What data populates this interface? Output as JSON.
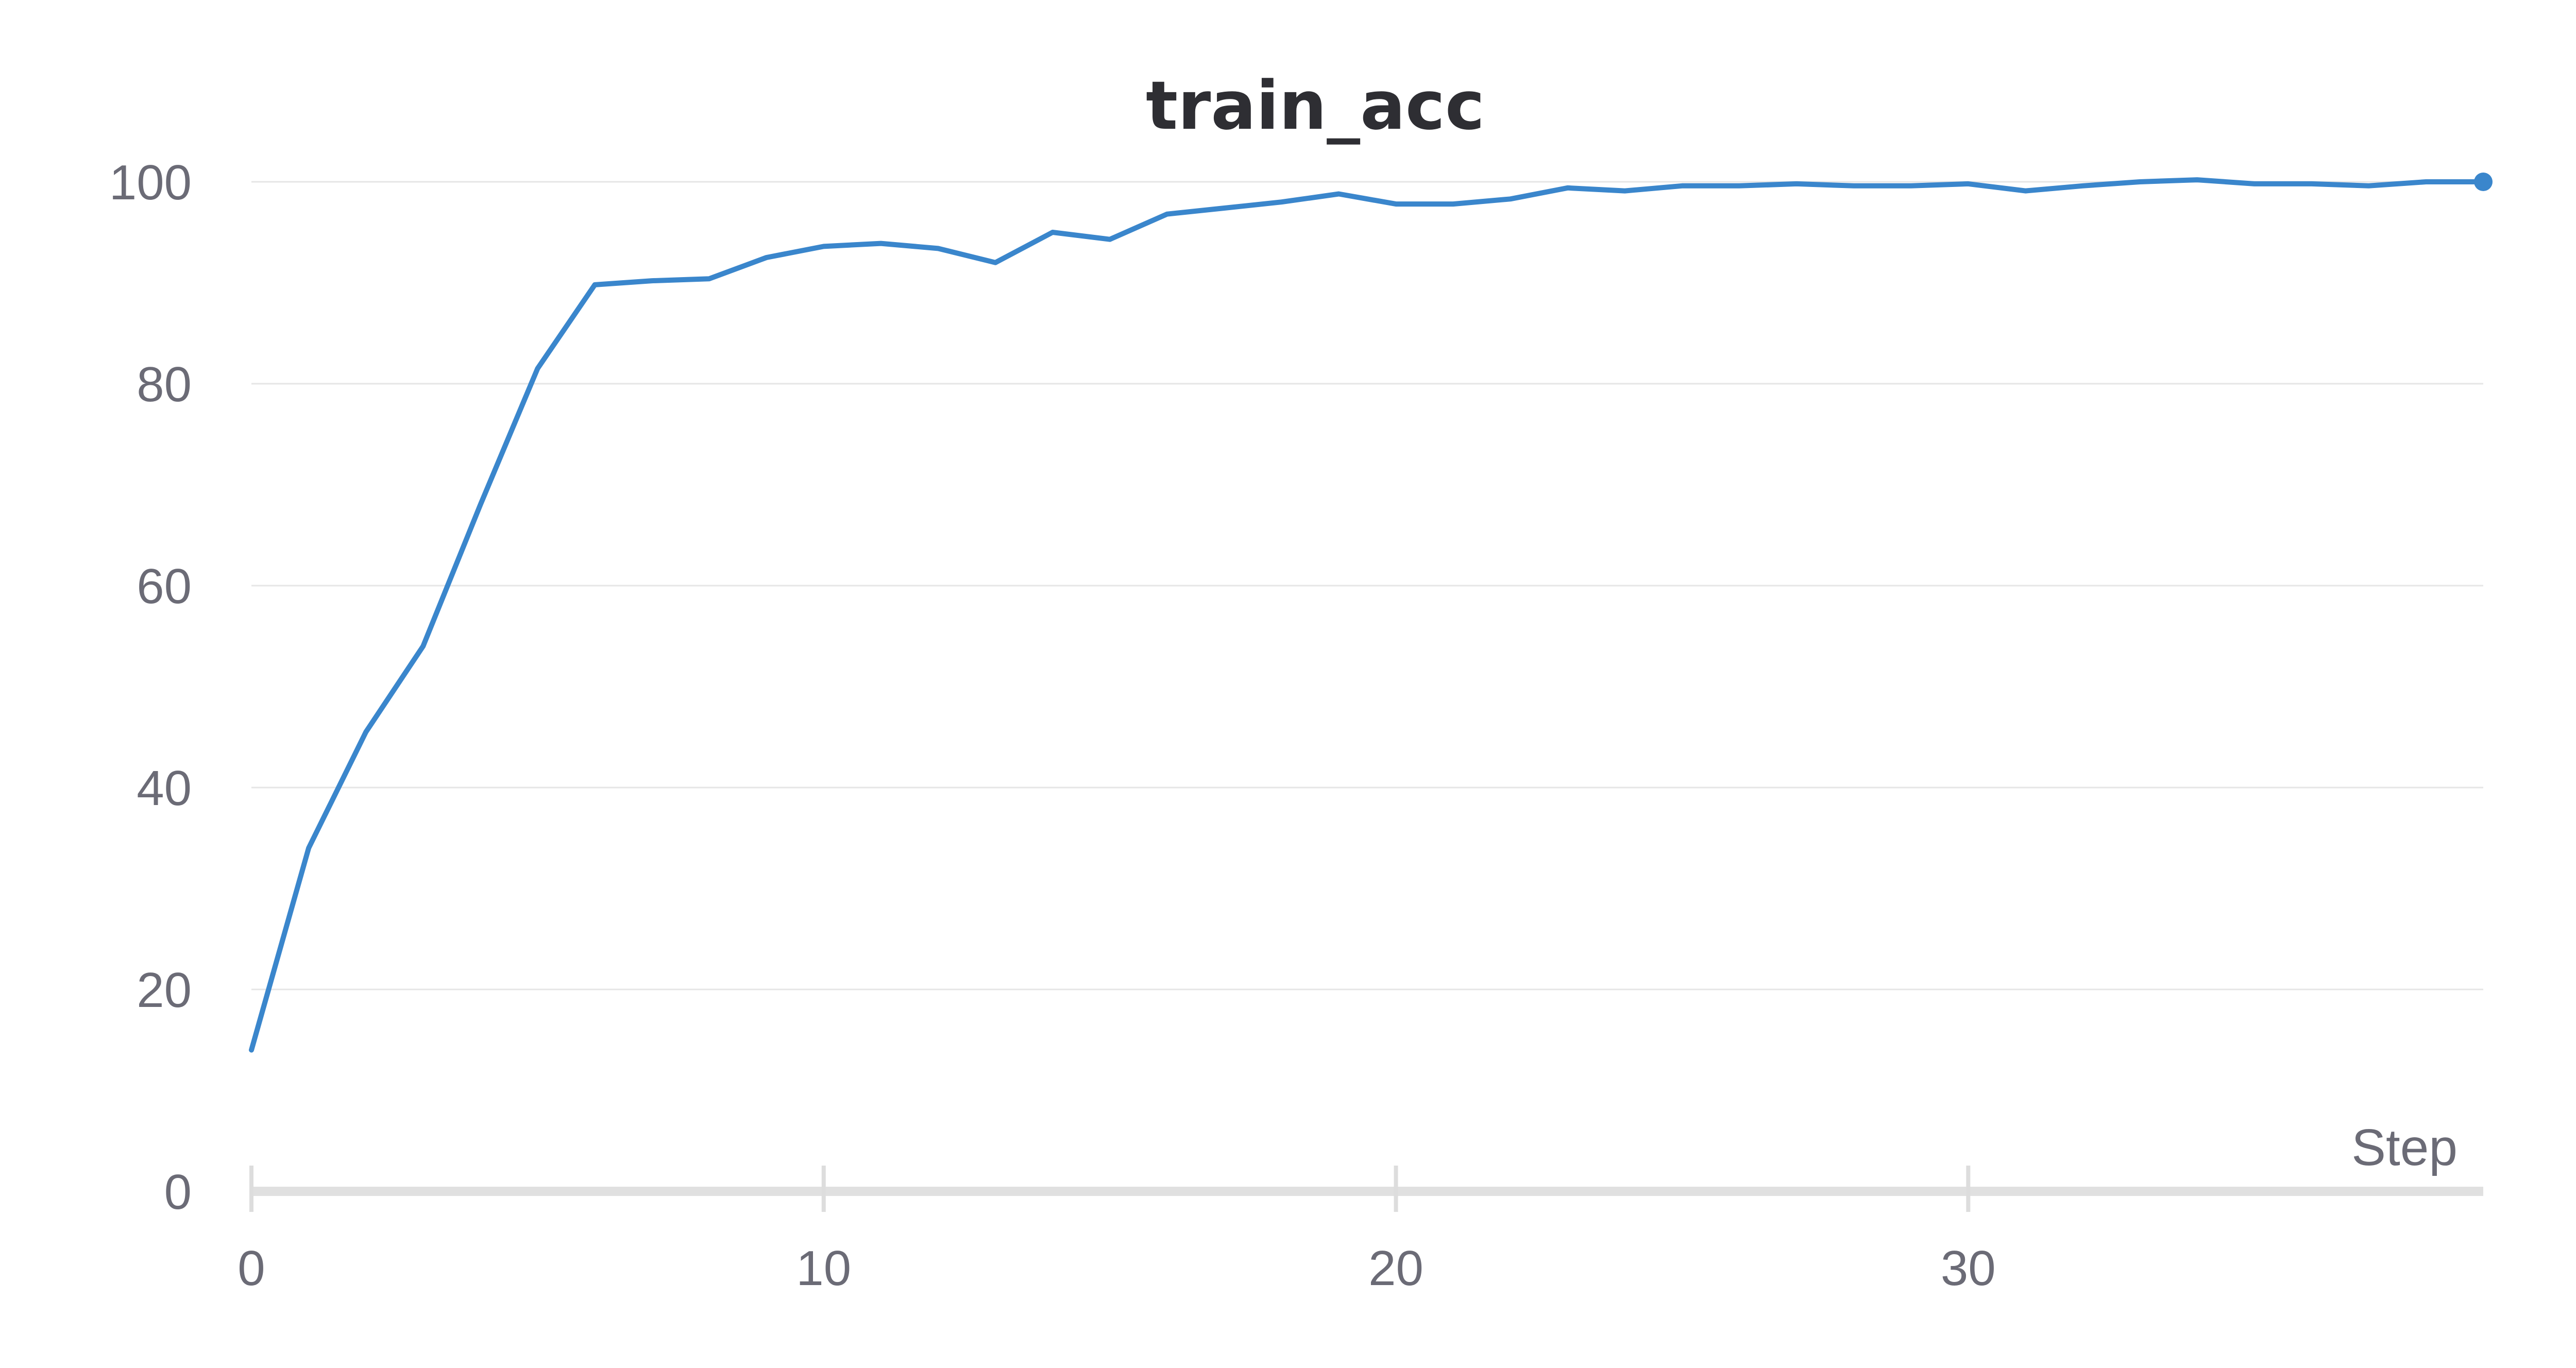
{
  "chart_data": {
    "type": "line",
    "title": "train_acc",
    "xlabel": "Step",
    "ylabel": "",
    "xlim": [
      0,
      39
    ],
    "ylim": [
      0,
      100
    ],
    "x_ticks": [
      0,
      10,
      20,
      30
    ],
    "y_ticks": [
      0,
      20,
      40,
      60,
      80,
      100
    ],
    "grid": true,
    "color": "#3a86cc",
    "series": [
      {
        "x": [
          0,
          1,
          2,
          3,
          4,
          5,
          6,
          7,
          8,
          9,
          10,
          11,
          12,
          13,
          14,
          15,
          16,
          17,
          18,
          19,
          20,
          21,
          22,
          23,
          24,
          25,
          26,
          27,
          28,
          29,
          30,
          31,
          32,
          33,
          34,
          35,
          36,
          37,
          38,
          39
        ],
        "values": [
          14,
          34,
          45.5,
          54,
          68,
          81.5,
          89.8,
          90.2,
          90.4,
          92.5,
          93.6,
          93.9,
          93.4,
          92,
          95,
          94.3,
          96.8,
          97.4,
          98,
          98.8,
          97.8,
          97.8,
          98.3,
          99.4,
          99.1,
          99.6,
          99.6,
          99.8,
          99.6,
          99.6,
          99.8,
          99.1,
          99.6,
          100,
          100.2,
          99.8,
          99.8,
          99.6,
          100,
          100
        ]
      }
    ]
  }
}
